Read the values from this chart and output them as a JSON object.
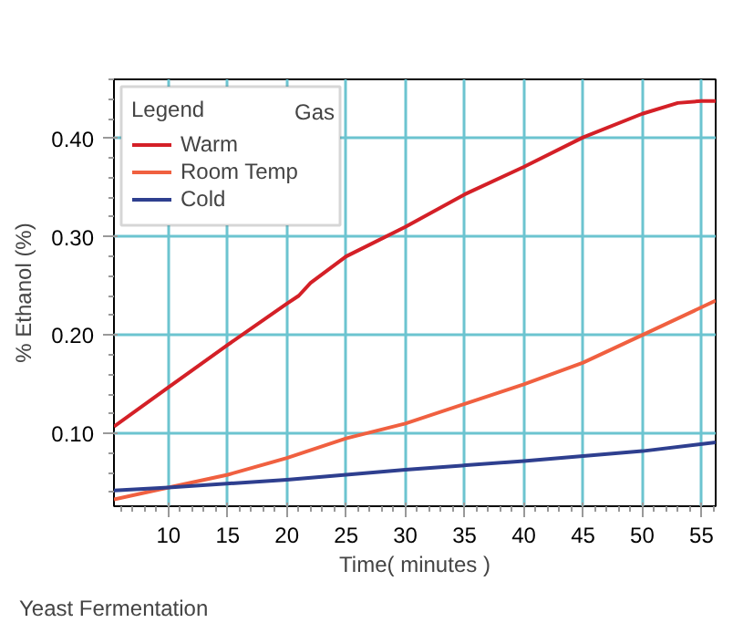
{
  "chart_data": {
    "type": "line",
    "title": "Yeast Fermentation",
    "xlabel": "Time( minutes )",
    "ylabel": "% Ethanol (%)",
    "legend_title": "Legend",
    "annotations": [
      "Gas"
    ],
    "xlim": [
      5.4,
      56.2
    ],
    "ylim": [
      0.026,
      0.46
    ],
    "xticks": [
      10,
      15,
      20,
      25,
      30,
      35,
      40,
      45,
      50,
      55
    ],
    "yticks": [
      {
        "value": 0.1,
        "label": "0.10"
      },
      {
        "value": 0.2,
        "label": "0.20"
      },
      {
        "value": 0.3,
        "label": "0.30"
      },
      {
        "value": 0.4,
        "label": "0.40"
      }
    ],
    "grid": true,
    "legend": "top left",
    "series": [
      {
        "name": "Warm",
        "color": "#d42027",
        "x": [
          5.4,
          10,
          15,
          20,
          21,
          22,
          25,
          30,
          35,
          40,
          45,
          50,
          53,
          55,
          56.2
        ],
        "values": [
          0.107,
          0.147,
          0.19,
          0.232,
          0.24,
          0.253,
          0.28,
          0.31,
          0.343,
          0.371,
          0.401,
          0.425,
          0.436,
          0.438,
          0.438
        ]
      },
      {
        "name": "Room Temp",
        "color": "#f06040",
        "x": [
          5.4,
          10,
          15,
          20,
          25,
          30,
          35,
          40,
          45,
          50,
          56.2
        ],
        "values": [
          0.033,
          0.045,
          0.058,
          0.075,
          0.095,
          0.11,
          0.13,
          0.15,
          0.172,
          0.2,
          0.235
        ]
      },
      {
        "name": "Cold",
        "color": "#2e3f8f",
        "x": [
          5.4,
          10,
          20,
          30,
          40,
          50,
          56.2
        ],
        "values": [
          0.042,
          0.045,
          0.053,
          0.063,
          0.072,
          0.082,
          0.091
        ]
      }
    ]
  }
}
